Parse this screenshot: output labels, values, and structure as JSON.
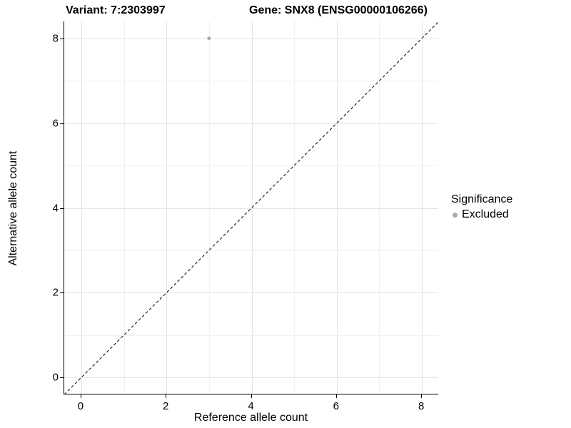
{
  "header": {
    "variant_title": "Variant: 7:2303997",
    "gene_title": "Gene: SNX8 (ENSG00000106266)"
  },
  "chart_data": {
    "type": "scatter",
    "title": "Variant: 7:2303997  /  Gene: SNX8 (ENSG00000106266)",
    "xlabel": "Reference allele count",
    "ylabel": "Alternative allele count",
    "xlim": [
      -0.4,
      8.4
    ],
    "ylim": [
      -0.4,
      8.4
    ],
    "xticks": [
      0,
      2,
      4,
      6,
      8
    ],
    "yticks": [
      0,
      2,
      4,
      6,
      8
    ],
    "minor_xticks": [
      1,
      3,
      5,
      7
    ],
    "minor_yticks": [
      1,
      3,
      5,
      7
    ],
    "grid": true,
    "series": [
      {
        "name": "Excluded",
        "color": "#aaaaaa",
        "marker_radius": 2.5,
        "points": [
          {
            "x": 3,
            "y": 8
          }
        ]
      }
    ],
    "reference_line": {
      "type": "identity",
      "x1": -0.4,
      "y1": -0.4,
      "x2": 8.4,
      "y2": 8.4,
      "style": "dashed",
      "dash": "4 3",
      "color": "#000000",
      "width": 1
    },
    "legend": {
      "title": "Significance",
      "position": "right",
      "entries": [
        {
          "label": "Excluded",
          "color": "#aaaaaa"
        }
      ]
    }
  },
  "colors": {
    "background": "#ffffff",
    "grid_major": "#e4e4e4",
    "grid_minor": "#f1f1f1",
    "axis_line": "#000000",
    "text": "#000000"
  }
}
